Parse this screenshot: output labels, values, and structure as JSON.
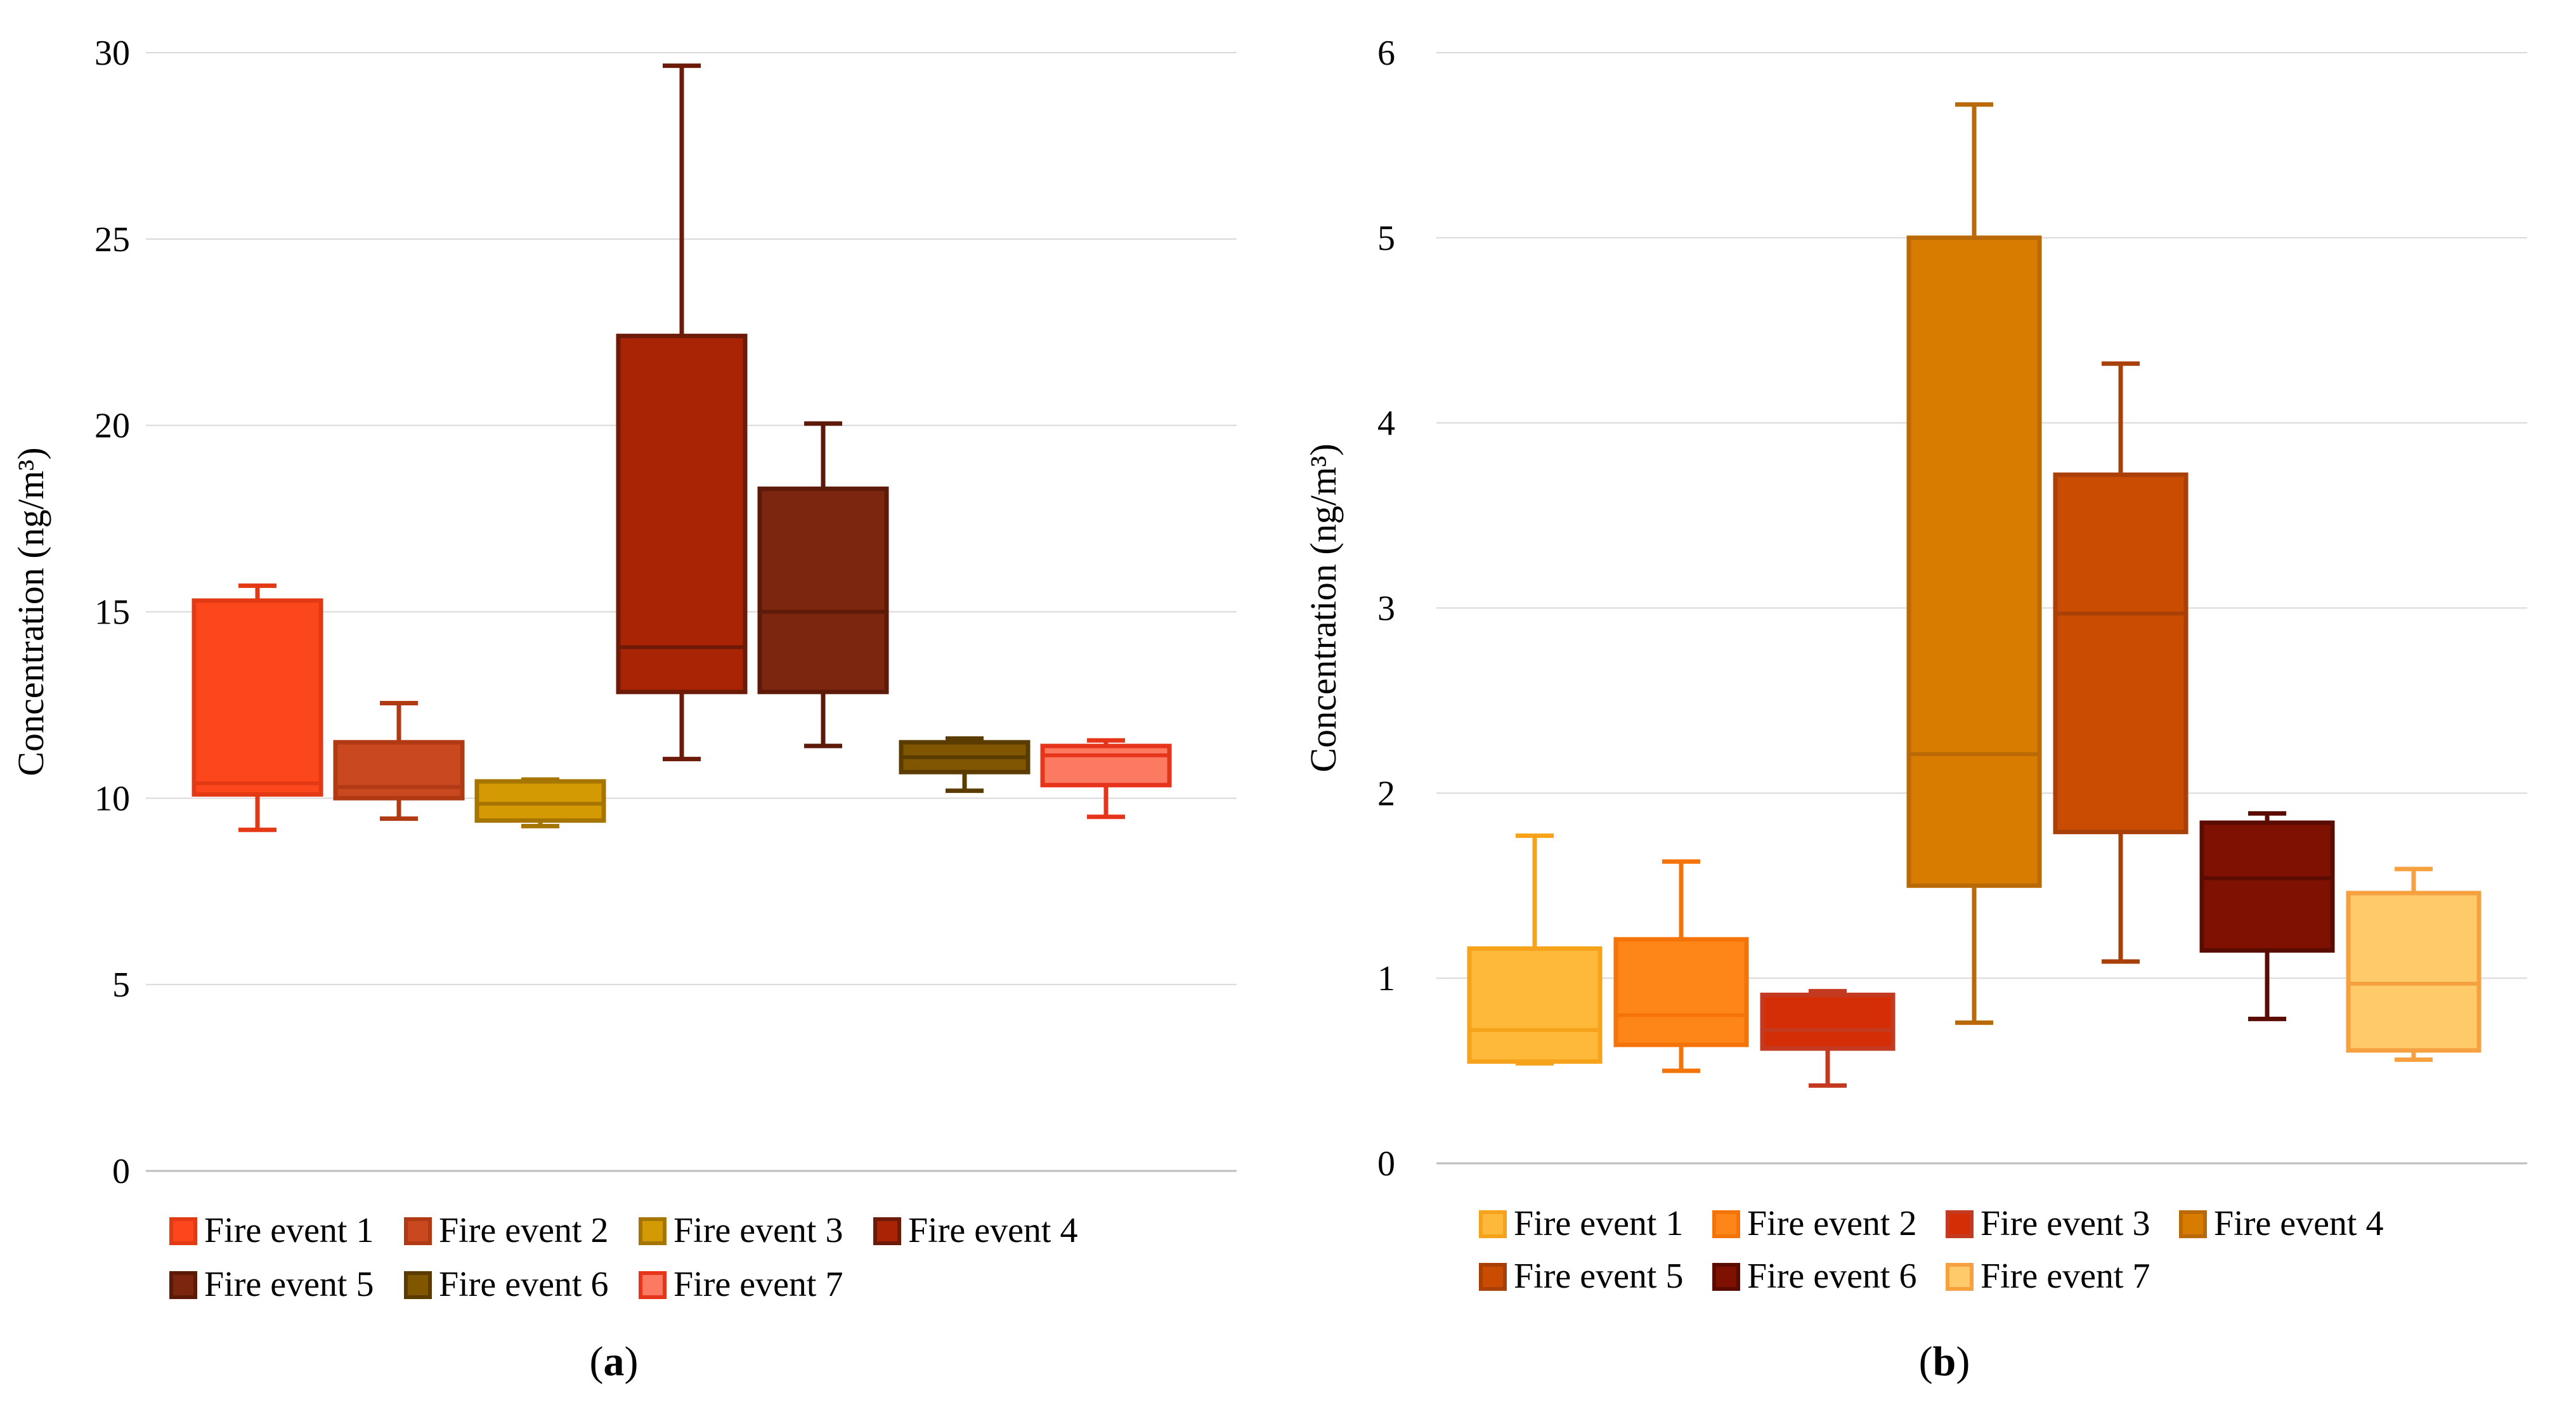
{
  "chart_data": [
    {
      "type": "boxplot",
      "panel_label": "a",
      "ylabel": "Concentration (ng/m³)",
      "ylim": [
        0,
        30
      ],
      "yticks": [
        "0",
        "5",
        "10",
        "15",
        "20",
        "25",
        "30"
      ],
      "grid": true,
      "legend_position": "bottom",
      "series": [
        {
          "name": "Fire event 1",
          "fill": "#FC461B",
          "stroke": "#E33A15",
          "min": 9.15,
          "q1": 10.1,
          "median": 10.4,
          "q3": 15.3,
          "max": 15.7
        },
        {
          "name": "Fire event 2",
          "fill": "#C9481F",
          "stroke": "#B03A14",
          "min": 9.45,
          "q1": 10.0,
          "median": 10.3,
          "q3": 11.5,
          "max": 12.55
        },
        {
          "name": "Fire event 3",
          "fill": "#D49A03",
          "stroke": "#A67500",
          "min": 9.25,
          "q1": 9.4,
          "median": 9.85,
          "q3": 10.45,
          "max": 10.5
        },
        {
          "name": "Fire event 4",
          "fill": "#A82405",
          "stroke": "#6E1A08",
          "min": 11.05,
          "q1": 12.85,
          "median": 14.05,
          "q3": 22.4,
          "max": 29.65
        },
        {
          "name": "Fire event 5",
          "fill": "#7C2610",
          "stroke": "#5E1A08",
          "min": 11.4,
          "q1": 12.85,
          "median": 15.0,
          "q3": 18.3,
          "max": 20.05
        },
        {
          "name": "Fire event 6",
          "fill": "#805600",
          "stroke": "#5A3C00",
          "min": 10.2,
          "q1": 10.7,
          "median": 11.1,
          "q3": 11.5,
          "max": 11.6
        },
        {
          "name": "Fire event 7",
          "fill": "#FD7A62",
          "stroke": "#E6351A",
          "min": 9.5,
          "q1": 10.35,
          "median": 11.15,
          "q3": 11.4,
          "max": 11.55
        }
      ]
    },
    {
      "type": "boxplot",
      "panel_label": "b",
      "ylabel": "Concentration (ng/m³)",
      "ylim": [
        0,
        6
      ],
      "yticks": [
        "0",
        "1",
        "2",
        "3",
        "4",
        "5",
        "6"
      ],
      "grid": true,
      "legend_position": "bottom",
      "series": [
        {
          "name": "Fire event 1",
          "fill": "#FFB93A",
          "stroke": "#F6A21A",
          "min": 0.54,
          "q1": 0.55,
          "median": 0.72,
          "q3": 1.16,
          "max": 1.77
        },
        {
          "name": "Fire event 2",
          "fill": "#FE8618",
          "stroke": "#F4740A",
          "min": 0.5,
          "q1": 0.64,
          "median": 0.8,
          "q3": 1.21,
          "max": 1.63
        },
        {
          "name": "Fire event 3",
          "fill": "#D42E06",
          "stroke": "#C43A20",
          "min": 0.42,
          "q1": 0.62,
          "median": 0.72,
          "q3": 0.91,
          "max": 0.93
        },
        {
          "name": "Fire event 4",
          "fill": "#D87C00",
          "stroke": "#B96A06",
          "min": 0.76,
          "q1": 1.5,
          "median": 2.21,
          "q3": 5.0,
          "max": 5.72
        },
        {
          "name": "Fire event 5",
          "fill": "#C94C02",
          "stroke": "#A84008",
          "min": 1.09,
          "q1": 1.79,
          "median": 2.97,
          "q3": 3.72,
          "max": 4.32
        },
        {
          "name": "Fire event 6",
          "fill": "#7E1102",
          "stroke": "#5A0C02",
          "min": 0.78,
          "q1": 1.15,
          "median": 1.54,
          "q3": 1.84,
          "max": 1.89
        },
        {
          "name": "Fire event 7",
          "fill": "#FFCA6A",
          "stroke": "#F6A040",
          "min": 0.56,
          "q1": 0.61,
          "median": 0.97,
          "q3": 1.46,
          "max": 1.59
        }
      ]
    }
  ]
}
